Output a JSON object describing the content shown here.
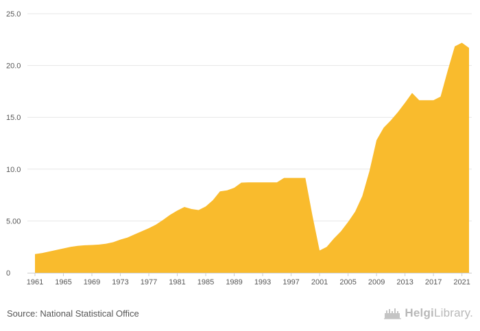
{
  "chart_data": {
    "type": "area",
    "title": "",
    "xlabel": "",
    "ylabel": "",
    "ylim": [
      0,
      25
    ],
    "yticks": [
      0,
      5,
      10,
      15,
      20,
      25
    ],
    "ytick_labels": [
      "0",
      "5.00",
      "10.0",
      "15.0",
      "20.0",
      "25.0"
    ],
    "xticks": [
      1961,
      1965,
      1969,
      1973,
      1977,
      1981,
      1985,
      1989,
      1993,
      1997,
      2001,
      2005,
      2009,
      2013,
      2017,
      2021
    ],
    "grid": true,
    "legend": "none",
    "fill_color": "#F9BB2D",
    "series": [
      {
        "x": [
          1961,
          1962,
          1963,
          1964,
          1965,
          1966,
          1967,
          1968,
          1969,
          1970,
          1971,
          1972,
          1973,
          1974,
          1975,
          1976,
          1977,
          1978,
          1979,
          1980,
          1981,
          1982,
          1983,
          1984,
          1985,
          1986,
          1987,
          1988,
          1989,
          1990,
          1991,
          1992,
          1993,
          1994,
          1995,
          1996,
          1997,
          1998,
          1999,
          2000,
          2001,
          2002,
          2003,
          2004,
          2005,
          2006,
          2007,
          2008,
          2009,
          2010,
          2011,
          2012,
          2013,
          2014,
          2015,
          2016,
          2017,
          2018,
          2019,
          2020,
          2021,
          2022
        ],
        "values": [
          1.8,
          1.9,
          2.05,
          2.2,
          2.35,
          2.5,
          2.6,
          2.65,
          2.68,
          2.72,
          2.8,
          2.95,
          3.2,
          3.4,
          3.7,
          4.0,
          4.3,
          4.65,
          5.1,
          5.6,
          6.0,
          6.35,
          6.15,
          6.05,
          6.4,
          7.0,
          7.85,
          7.95,
          8.2,
          8.7,
          8.72,
          8.72,
          8.72,
          8.72,
          8.72,
          9.15,
          9.15,
          9.15,
          9.15,
          5.5,
          2.15,
          2.5,
          3.3,
          4.0,
          4.9,
          5.9,
          7.4,
          9.8,
          12.8,
          14.0,
          14.7,
          15.5,
          16.4,
          17.35,
          16.65,
          16.65,
          16.65,
          17.0,
          19.5,
          21.85,
          22.2,
          21.7
        ]
      }
    ]
  },
  "footer": {
    "source": "Source: National Statistical Office",
    "brand_bold": "Helgi",
    "brand_light": "Library."
  }
}
